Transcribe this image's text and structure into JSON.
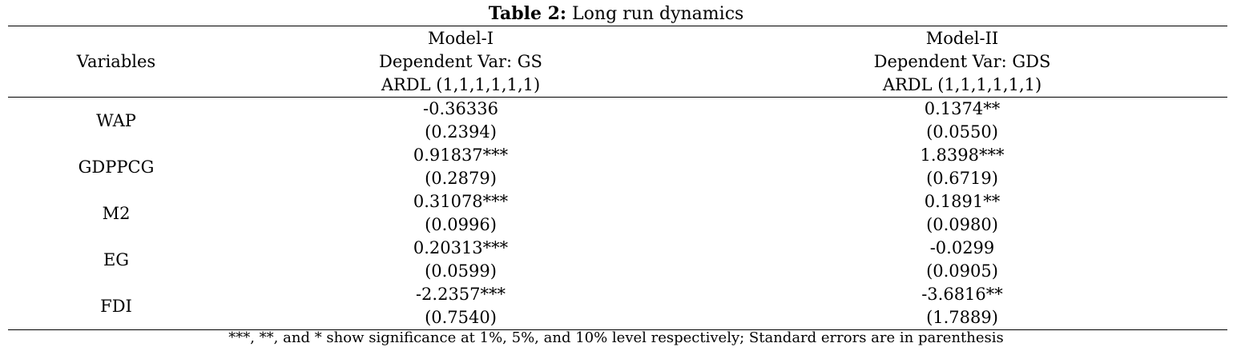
{
  "caption": {
    "label": "Table 2:",
    "title": "Long run dynamics"
  },
  "header": {
    "variables": "Variables",
    "model1": {
      "name": "Model-I",
      "dep": "Dependent Var: GS",
      "spec": "ARDL (1,1,1,1,1,1)"
    },
    "model2": {
      "name": "Model-II",
      "dep": "Dependent Var: GDS",
      "spec": "ARDL (1,1,1,1,1,1)"
    }
  },
  "rows": [
    {
      "var": "WAP",
      "m1_coef": "-0.36336",
      "m1_se": "(0.2394)",
      "m2_coef": "0.1374**",
      "m2_se": "(0.0550)"
    },
    {
      "var": "GDPPCG",
      "m1_coef": "0.91837***",
      "m1_se": "(0.2879)",
      "m2_coef": "1.8398***",
      "m2_se": "(0.6719)"
    },
    {
      "var": "M2",
      "m1_coef": "0.31078***",
      "m1_se": "(0.0996)",
      "m2_coef": "0.1891**",
      "m2_se": "(0.0980)"
    },
    {
      "var": "EG",
      "m1_coef": "0.20313***",
      "m1_se": "(0.0599)",
      "m2_coef": "-0.0299",
      "m2_se": "(0.0905)"
    },
    {
      "var": "FDI",
      "m1_coef": "-2.2357***",
      "m1_se": "(0.7540)",
      "m2_coef": "-3.6816**",
      "m2_se": "(1.7889)"
    }
  ],
  "note": "***, **, and * show significance at 1%, 5%, and 10% level respectively; Standard errors are in parenthesis"
}
